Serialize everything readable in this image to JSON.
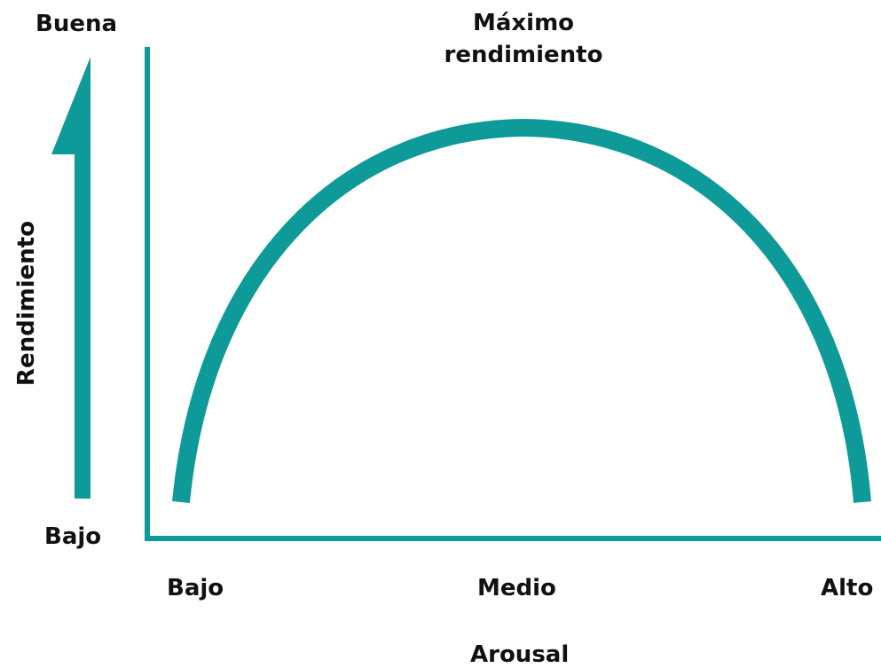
{
  "colors": {
    "accent": "#0E9A99",
    "text": "#111111",
    "background": "#FFFFFF"
  },
  "labels": {
    "y_top": "Buena",
    "y_bottom": "Bajo",
    "y_title": "Rendimiento",
    "peak_line1": "Máximo",
    "peak_line2": "rendimiento",
    "x_low": "Bajo",
    "x_mid": "Medio",
    "x_high": "Alto",
    "x_title": "Arousal"
  }
}
